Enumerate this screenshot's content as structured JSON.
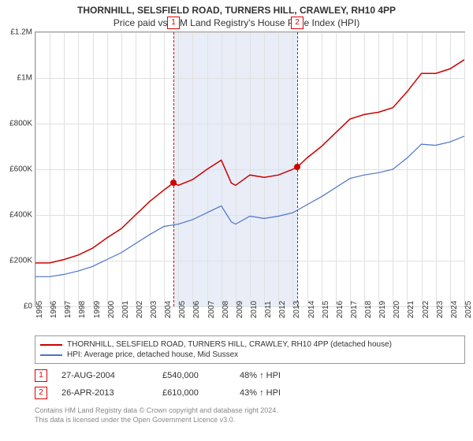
{
  "title_line1": "THORNHILL, SELSFIELD ROAD, TURNERS HILL, CRAWLEY, RH10 4PP",
  "title_line2": "Price paid vs. HM Land Registry's House Price Index (HPI)",
  "chart": {
    "type": "line",
    "background_color": "#ffffff",
    "grid_color": "#e0e0e0",
    "border_color": "#999999",
    "ylim": [
      0,
      1200000
    ],
    "ytick_step": 200000,
    "ytick_labels": [
      "£0",
      "£200K",
      "£400K",
      "£600K",
      "£800K",
      "£1M",
      "£1.2M"
    ],
    "x_years": [
      1995,
      1996,
      1997,
      1998,
      1999,
      2000,
      2001,
      2002,
      2003,
      2004,
      2005,
      2006,
      2007,
      2008,
      2009,
      2010,
      2011,
      2012,
      2013,
      2014,
      2015,
      2016,
      2017,
      2018,
      2019,
      2020,
      2021,
      2022,
      2023,
      2024,
      2025
    ],
    "shade_start_year": 2004.65,
    "shade_end_year": 2013.32,
    "shade_color": "#e8edf8",
    "series": {
      "property": {
        "label": "THORNHILL, SELSFIELD ROAD, TURNERS HILL, CRAWLEY, RH10 4PP (detached house)",
        "color": "#cc0000",
        "line_width": 1.5,
        "points": [
          [
            1995,
            190000
          ],
          [
            1996,
            190000
          ],
          [
            1997,
            205000
          ],
          [
            1998,
            225000
          ],
          [
            1999,
            255000
          ],
          [
            2000,
            300000
          ],
          [
            2001,
            340000
          ],
          [
            2002,
            400000
          ],
          [
            2003,
            460000
          ],
          [
            2004,
            510000
          ],
          [
            2004.65,
            540000
          ],
          [
            2005,
            530000
          ],
          [
            2006,
            555000
          ],
          [
            2007,
            600000
          ],
          [
            2008,
            640000
          ],
          [
            2008.7,
            540000
          ],
          [
            2009,
            530000
          ],
          [
            2010,
            575000
          ],
          [
            2011,
            565000
          ],
          [
            2012,
            575000
          ],
          [
            2013,
            600000
          ],
          [
            2013.32,
            610000
          ],
          [
            2014,
            650000
          ],
          [
            2015,
            700000
          ],
          [
            2016,
            760000
          ],
          [
            2017,
            820000
          ],
          [
            2018,
            840000
          ],
          [
            2019,
            850000
          ],
          [
            2020,
            870000
          ],
          [
            2021,
            940000
          ],
          [
            2022,
            1020000
          ],
          [
            2023,
            1020000
          ],
          [
            2024,
            1040000
          ],
          [
            2025,
            1080000
          ]
        ]
      },
      "hpi": {
        "label": "HPI: Average price, detached house, Mid Sussex",
        "color": "#4a74c9",
        "line_width": 1.2,
        "points": [
          [
            1995,
            130000
          ],
          [
            1996,
            130000
          ],
          [
            1997,
            140000
          ],
          [
            1998,
            155000
          ],
          [
            1999,
            175000
          ],
          [
            2000,
            205000
          ],
          [
            2001,
            235000
          ],
          [
            2002,
            275000
          ],
          [
            2003,
            315000
          ],
          [
            2004,
            350000
          ],
          [
            2005,
            360000
          ],
          [
            2006,
            380000
          ],
          [
            2007,
            410000
          ],
          [
            2008,
            440000
          ],
          [
            2008.7,
            370000
          ],
          [
            2009,
            360000
          ],
          [
            2010,
            395000
          ],
          [
            2011,
            385000
          ],
          [
            2012,
            395000
          ],
          [
            2013,
            410000
          ],
          [
            2014,
            445000
          ],
          [
            2015,
            480000
          ],
          [
            2016,
            520000
          ],
          [
            2017,
            560000
          ],
          [
            2018,
            575000
          ],
          [
            2019,
            585000
          ],
          [
            2020,
            600000
          ],
          [
            2021,
            650000
          ],
          [
            2022,
            710000
          ],
          [
            2023,
            705000
          ],
          [
            2024,
            720000
          ],
          [
            2025,
            745000
          ]
        ]
      }
    },
    "sales": [
      {
        "n": "1",
        "year": 2004.65,
        "price": 540000,
        "date": "27-AUG-2004",
        "price_label": "£540,000",
        "hpi_label": "48% ↑ HPI"
      },
      {
        "n": "2",
        "year": 2013.32,
        "price": 610000,
        "date": "26-APR-2013",
        "price_label": "£610,000",
        "hpi_label": "43% ↑ HPI"
      }
    ],
    "sale_marker_color": "#d00000",
    "label_fontsize": 10
  },
  "footer_line1": "Contains HM Land Registry data © Crown copyright and database right 2024.",
  "footer_line2": "This data is licensed under the Open Government Licence v3.0."
}
